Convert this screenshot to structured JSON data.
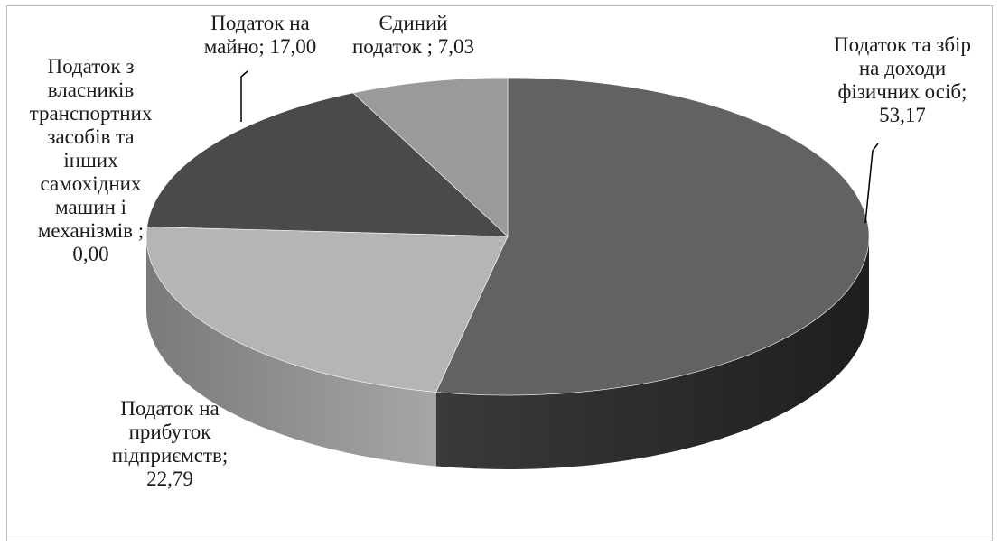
{
  "chart_data": {
    "type": "pie",
    "three_d": true,
    "slices": [
      {
        "label": "Податок та збір\nна доходи\nфізичних осіб;\n53,17",
        "value": 53.17,
        "top_color": "#626262",
        "side_color": "#2c2c2c"
      },
      {
        "label": "Податок на\nприбуток\nпідприємств;\n22,79",
        "value": 22.79,
        "top_color": "#b5b5b5",
        "side_color": "#8a8a8a"
      },
      {
        "label": "Податок з\nвласників\nтранспортних\nзасобів та\nінших\nсамохідних\nмашин і\nмеханізмів ;\n0,00",
        "value": 0.0,
        "top_color": "#d8d8d8",
        "side_color": "#a0a0a0"
      },
      {
        "label": "Податок на\nмайно; 17,00",
        "value": 17.0,
        "top_color": "#4a4a4a",
        "side_color": "#262626"
      },
      {
        "label": "Єдиний\nподаток ; 7,03",
        "value": 7.03,
        "top_color": "#9a9a9a",
        "side_color": "#6e6e6e"
      }
    ]
  }
}
